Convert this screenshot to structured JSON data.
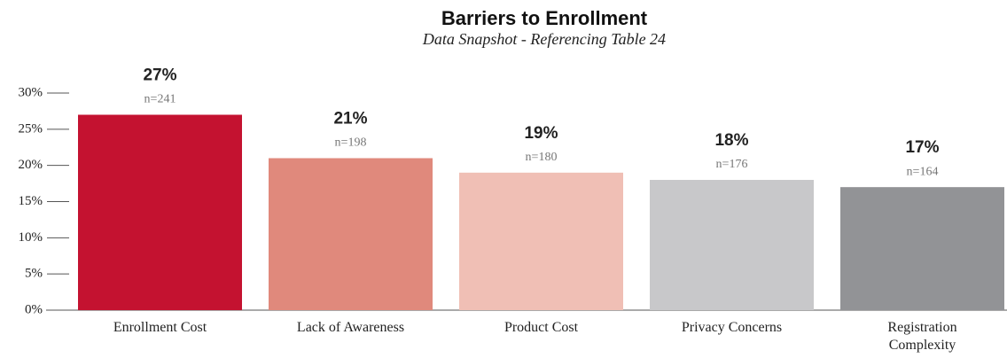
{
  "chart_data": {
    "type": "bar",
    "title": "Barriers to Enrollment",
    "subtitle": "Data Snapshot - Referencing Table 24",
    "categories": [
      "Enrollment Cost",
      "Lack of Awareness",
      "Product Cost",
      "Privacy Concerns",
      "Registration Complexity"
    ],
    "values": [
      27,
      21,
      19,
      18,
      17
    ],
    "value_labels": [
      "27%",
      "21%",
      "19%",
      "18%",
      "17%"
    ],
    "n_labels": [
      "n=241",
      "n=198",
      "n=180",
      "n=176",
      "n=164"
    ],
    "colors": [
      "#c41230",
      "#e0897c",
      "#f0bfb5",
      "#c8c8ca",
      "#929396"
    ],
    "ylim": [
      0,
      30
    ],
    "yticks": [
      {
        "value": 0,
        "label": "0%"
      },
      {
        "value": 5,
        "label": "5%"
      },
      {
        "value": 10,
        "label": "10%"
      },
      {
        "value": 15,
        "label": "15%"
      },
      {
        "value": 20,
        "label": "20%"
      },
      {
        "value": 25,
        "label": "25%"
      },
      {
        "value": 30,
        "label": "30%"
      }
    ]
  }
}
